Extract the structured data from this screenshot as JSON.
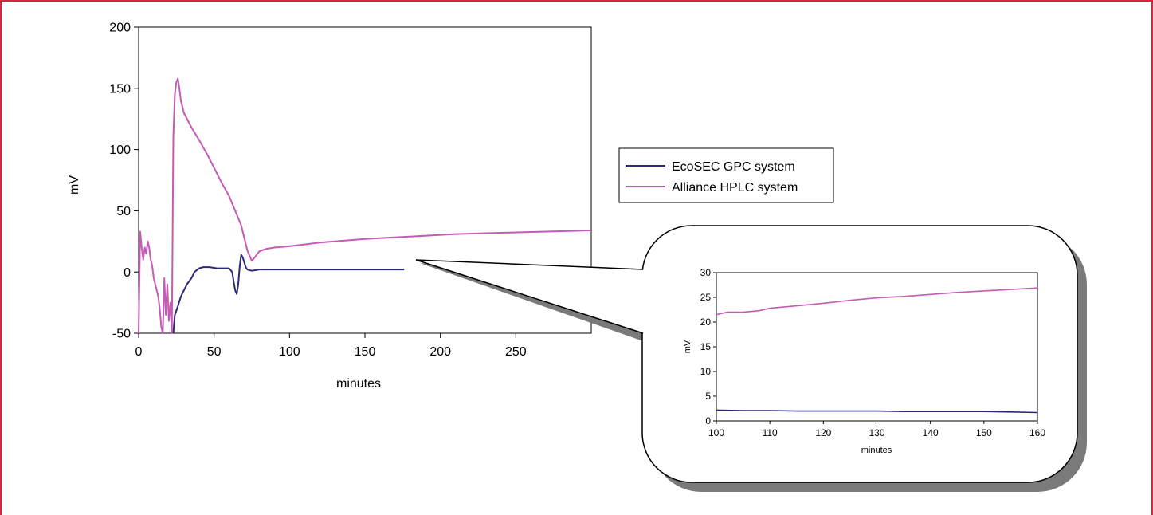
{
  "colors": {
    "frame": "#d7263d",
    "ecosec": "#2b2a7a",
    "alliance": "#c45bb5"
  },
  "legend": {
    "items": [
      {
        "label": "EcoSEC GPC system",
        "color": "#2b2a7a"
      },
      {
        "label": "Alliance HPLC system",
        "color": "#c45bb5"
      }
    ]
  },
  "chart_data": [
    {
      "type": "line",
      "xlabel": "minutes",
      "ylabel": "mV",
      "xlim": [
        0,
        300
      ],
      "ylim": [
        -50,
        200
      ],
      "xticks": [
        "0",
        "50",
        "100",
        "150",
        "200",
        "250"
      ],
      "yticks": [
        "200",
        "150",
        "100",
        "50",
        "0",
        "-50"
      ],
      "grid": false,
      "legend_position": "right",
      "series": [
        {
          "name": "EcoSEC GPC system",
          "color": "#2b2a7a",
          "points": [
            [
              23,
              -50
            ],
            [
              24,
              -35
            ],
            [
              26,
              -28
            ],
            [
              28,
              -20
            ],
            [
              30,
              -15
            ],
            [
              32,
              -10
            ],
            [
              35,
              -5
            ],
            [
              37,
              0
            ],
            [
              40,
              3
            ],
            [
              43,
              4
            ],
            [
              47,
              4
            ],
            [
              52,
              3
            ],
            [
              56,
              3
            ],
            [
              60,
              3
            ],
            [
              62,
              0
            ],
            [
              63,
              -8
            ],
            [
              64,
              -15
            ],
            [
              65,
              -18
            ],
            [
              66,
              -10
            ],
            [
              67,
              5
            ],
            [
              68,
              14
            ],
            [
              69,
              12
            ],
            [
              70,
              8
            ],
            [
              71,
              4
            ],
            [
              72,
              2
            ],
            [
              75,
              1
            ],
            [
              80,
              2
            ],
            [
              90,
              2
            ],
            [
              100,
              2
            ],
            [
              120,
              2
            ],
            [
              140,
              2
            ],
            [
              160,
              2
            ],
            [
              176,
              2
            ]
          ]
        },
        {
          "name": "Alliance HPLC system",
          "color": "#c45bb5",
          "points": [
            [
              0,
              -50
            ],
            [
              1,
              33
            ],
            [
              2,
              20
            ],
            [
              3,
              10
            ],
            [
              4,
              20
            ],
            [
              5,
              15
            ],
            [
              6,
              25
            ],
            [
              7,
              20
            ],
            [
              8,
              10
            ],
            [
              9,
              5
            ],
            [
              10,
              -5
            ],
            [
              11,
              -10
            ],
            [
              12,
              -15
            ],
            [
              13,
              -20
            ],
            [
              14,
              -30
            ],
            [
              15,
              -45
            ],
            [
              16,
              -50
            ],
            [
              17,
              -5
            ],
            [
              18,
              -35
            ],
            [
              19,
              -10
            ],
            [
              20,
              -40
            ],
            [
              21,
              -25
            ],
            [
              22,
              -50
            ],
            [
              23,
              110
            ],
            [
              24,
              145
            ],
            [
              25,
              155
            ],
            [
              26,
              158
            ],
            [
              27,
              150
            ],
            [
              28,
              140
            ],
            [
              30,
              130
            ],
            [
              35,
              118
            ],
            [
              40,
              108
            ],
            [
              45,
              97
            ],
            [
              50,
              85
            ],
            [
              55,
              73
            ],
            [
              60,
              62
            ],
            [
              65,
              47
            ],
            [
              68,
              38
            ],
            [
              70,
              28
            ],
            [
              72,
              18
            ],
            [
              74,
              12
            ],
            [
              75,
              9
            ],
            [
              77,
              12
            ],
            [
              80,
              17
            ],
            [
              85,
              19
            ],
            [
              90,
              20
            ],
            [
              100,
              21
            ],
            [
              120,
              24
            ],
            [
              150,
              27
            ],
            [
              180,
              29
            ],
            [
              210,
              31
            ],
            [
              240,
              32
            ],
            [
              270,
              33
            ],
            [
              300,
              34
            ]
          ]
        }
      ]
    },
    {
      "type": "line",
      "xlabel": "minutes",
      "ylabel": "mV",
      "xlim": [
        100,
        160
      ],
      "ylim": [
        0,
        30
      ],
      "xticks": [
        "100",
        "110",
        "120",
        "130",
        "140",
        "150",
        "160"
      ],
      "yticks": [
        "30",
        "25",
        "20",
        "15",
        "10",
        "5",
        "0"
      ],
      "grid": false,
      "series": [
        {
          "name": "EcoSEC GPC system",
          "color": "#2b2a7a",
          "points": [
            [
              100,
              2.2
            ],
            [
              105,
              2.1
            ],
            [
              110,
              2.1
            ],
            [
              115,
              2.0
            ],
            [
              120,
              2.0
            ],
            [
              125,
              2.0
            ],
            [
              130,
              2.0
            ],
            [
              135,
              1.9
            ],
            [
              140,
              1.9
            ],
            [
              145,
              1.9
            ],
            [
              150,
              1.9
            ],
            [
              155,
              1.8
            ],
            [
              160,
              1.7
            ]
          ]
        },
        {
          "name": "Alliance HPLC system",
          "color": "#c45bb5",
          "points": [
            [
              100,
              21.5
            ],
            [
              102,
              22.0
            ],
            [
              105,
              22.0
            ],
            [
              108,
              22.3
            ],
            [
              110,
              22.8
            ],
            [
              113,
              23.1
            ],
            [
              116,
              23.4
            ],
            [
              120,
              23.8
            ],
            [
              125,
              24.4
            ],
            [
              130,
              24.9
            ],
            [
              135,
              25.2
            ],
            [
              140,
              25.6
            ],
            [
              145,
              26.0
            ],
            [
              150,
              26.3
            ],
            [
              155,
              26.6
            ],
            [
              160,
              26.9
            ]
          ]
        }
      ]
    }
  ]
}
